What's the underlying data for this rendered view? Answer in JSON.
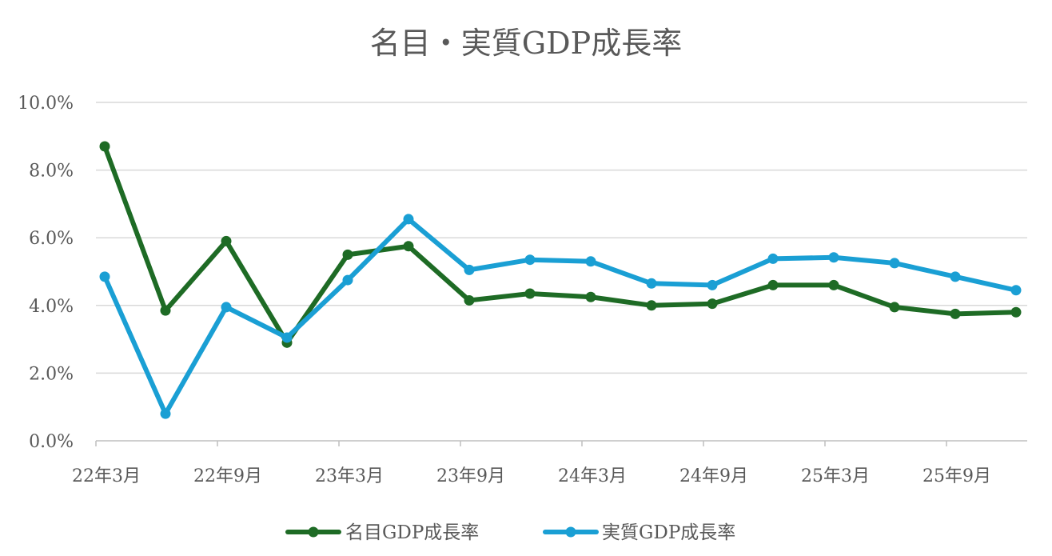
{
  "chart_data": {
    "type": "line",
    "title": "名目・実質GDP成長率",
    "xlabel": "",
    "ylabel": "",
    "x_tick_labels": [
      "22年3月",
      "22年9月",
      "23年3月",
      "23年9月",
      "24年3月",
      "24年9月",
      "25年3月",
      "25年9月"
    ],
    "y_tick_labels": [
      "0.0%",
      "2.0%",
      "4.0%",
      "6.0%",
      "8.0%",
      "10.0%"
    ],
    "y_ticks": [
      0,
      2,
      4,
      6,
      8,
      10
    ],
    "ylim": [
      0,
      10
    ],
    "grid": "horizontal",
    "legend_position": "bottom",
    "num_points": 16,
    "series": [
      {
        "name": "名目GDP成長率",
        "color": "#1e6b25",
        "values": [
          8.7,
          3.85,
          5.9,
          2.9,
          5.5,
          5.75,
          4.15,
          4.35,
          4.25,
          4.0,
          4.05,
          4.6,
          4.6,
          3.95,
          3.75,
          3.8
        ]
      },
      {
        "name": "実質GDP成長率",
        "color": "#1a9fd4",
        "values": [
          4.85,
          0.8,
          3.95,
          3.05,
          4.75,
          6.55,
          5.05,
          5.35,
          5.3,
          4.65,
          4.6,
          5.38,
          5.42,
          5.25,
          4.85,
          4.45
        ]
      }
    ]
  }
}
